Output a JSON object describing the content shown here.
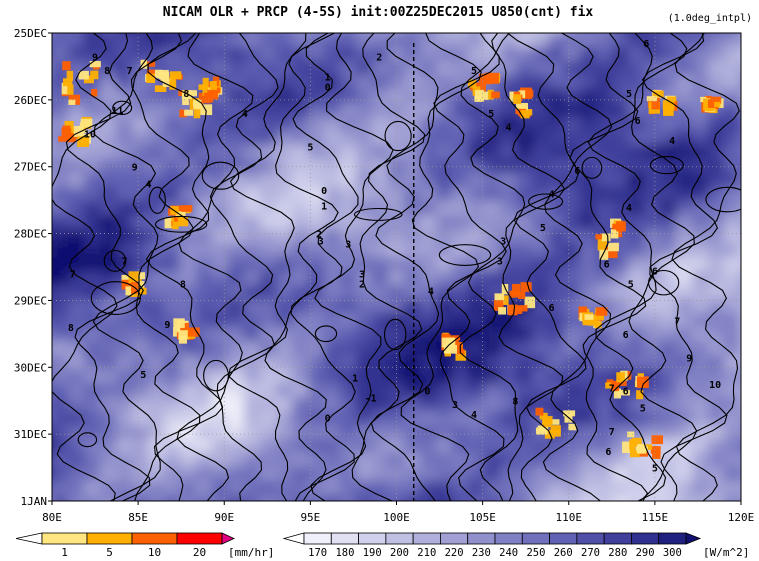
{
  "figure": {
    "title": "NICAM  OLR + PRCP (4-5S) init:00Z25DEC2015 U850(cnt) fix",
    "note": "(1.0deg_intpl)"
  },
  "chart_data": {
    "type": "heatmap",
    "x": {
      "min": 80,
      "max": 120,
      "unit": "°E",
      "ticks": [
        80,
        85,
        90,
        95,
        100,
        105,
        110,
        115,
        120
      ],
      "tick_labels": [
        "80E",
        "85E",
        "90E",
        "95E",
        "100E",
        "105E",
        "110E",
        "115E",
        "120E"
      ]
    },
    "y": {
      "start": "25DEC",
      "end": "1JAN",
      "direction": "top-to-bottom",
      "tick_labels": [
        "25DEC",
        "26DEC",
        "27DEC",
        "28DEC",
        "29DEC",
        "30DEC",
        "31DEC",
        "1JAN"
      ]
    },
    "reference_line_lon": 101,
    "grid": true,
    "precipitation_colorbar": {
      "levels": [
        "1",
        "5",
        "10",
        "20"
      ],
      "unit": "[mm/hr]",
      "colors": [
        "#ffffff",
        "#ffe680",
        "#ffb000",
        "#ff6000",
        "#ff0000",
        "#e0007f"
      ]
    },
    "olr_colorbar": {
      "levels": [
        "170",
        "180",
        "190",
        "200",
        "210",
        "220",
        "230",
        "240",
        "250",
        "260",
        "270",
        "280",
        "290",
        "300"
      ],
      "unit": "[W/m^2]",
      "colors": [
        "#ffffff",
        "#f0f0fa",
        "#e0e0f2",
        "#d0d0ec",
        "#c0c0e4",
        "#b0b0dc",
        "#a0a0d4",
        "#9090cc",
        "#8080c4",
        "#7070bc",
        "#6060b4",
        "#5050a8",
        "#40409c",
        "#303090",
        "#202080",
        "#101070"
      ]
    },
    "u850_contour_labels": [
      {
        "text": "2",
        "lon": 99.0,
        "day": 0.35
      },
      {
        "text": "6",
        "lon": 114.5,
        "day": 0.15
      },
      {
        "text": "1",
        "lon": 96.0,
        "day": 0.65
      },
      {
        "text": "0",
        "lon": 96.0,
        "day": 0.8
      },
      {
        "text": "9",
        "lon": 82.5,
        "day": 0.35
      },
      {
        "text": "8",
        "lon": 83.2,
        "day": 0.55
      },
      {
        "text": "7",
        "lon": 84.5,
        "day": 0.55
      },
      {
        "text": "11",
        "lon": 83.8,
        "day": 1.15
      },
      {
        "text": "10",
        "lon": 82.2,
        "day": 1.5
      },
      {
        "text": "8",
        "lon": 87.8,
        "day": 0.9
      },
      {
        "text": "4",
        "lon": 91.2,
        "day": 1.2
      },
      {
        "text": "5",
        "lon": 104.5,
        "day": 0.55
      },
      {
        "text": "5",
        "lon": 105.5,
        "day": 1.2
      },
      {
        "text": "4",
        "lon": 106.5,
        "day": 1.4
      },
      {
        "text": "5",
        "lon": 113.5,
        "day": 0.9
      },
      {
        "text": "6",
        "lon": 114.0,
        "day": 1.3
      },
      {
        "text": "4",
        "lon": 116.0,
        "day": 1.6
      },
      {
        "text": "9",
        "lon": 84.8,
        "day": 2.0
      },
      {
        "text": "5",
        "lon": 95.0,
        "day": 1.7
      },
      {
        "text": "6",
        "lon": 110.5,
        "day": 2.05
      },
      {
        "text": "4",
        "lon": 109.0,
        "day": 2.4
      },
      {
        "text": "4",
        "lon": 113.5,
        "day": 2.6
      },
      {
        "text": "0",
        "lon": 95.8,
        "day": 2.35
      },
      {
        "text": "1",
        "lon": 95.8,
        "day": 2.58
      },
      {
        "text": "4",
        "lon": 85.6,
        "day": 2.25
      },
      {
        "text": "2",
        "lon": 95.5,
        "day": 3.0
      },
      {
        "text": "3",
        "lon": 95.6,
        "day": 3.1
      },
      {
        "text": "3",
        "lon": 97.2,
        "day": 3.15
      },
      {
        "text": "3",
        "lon": 106.2,
        "day": 3.1
      },
      {
        "text": "5",
        "lon": 108.5,
        "day": 2.9
      },
      {
        "text": "3",
        "lon": 106.0,
        "day": 3.4
      },
      {
        "text": "6",
        "lon": 112.2,
        "day": 3.45
      },
      {
        "text": "5",
        "lon": 113.6,
        "day": 3.75
      },
      {
        "text": "6",
        "lon": 115.0,
        "day": 3.55
      },
      {
        "text": "7",
        "lon": 84.2,
        "day": 3.4
      },
      {
        "text": "7",
        "lon": 81.2,
        "day": 3.6
      },
      {
        "text": "8",
        "lon": 87.6,
        "day": 3.75
      },
      {
        "text": "3",
        "lon": 98.0,
        "day": 3.6
      },
      {
        "text": "2",
        "lon": 98.0,
        "day": 3.75
      },
      {
        "text": "4",
        "lon": 102.0,
        "day": 3.85
      },
      {
        "text": "6",
        "lon": 109.0,
        "day": 4.1
      },
      {
        "text": "7",
        "lon": 116.3,
        "day": 4.3
      },
      {
        "text": "8",
        "lon": 81.1,
        "day": 4.4
      },
      {
        "text": "9",
        "lon": 86.7,
        "day": 4.35
      },
      {
        "text": "6",
        "lon": 113.3,
        "day": 4.5
      },
      {
        "text": "9",
        "lon": 117.0,
        "day": 4.85
      },
      {
        "text": "5",
        "lon": 85.3,
        "day": 5.1
      },
      {
        "text": "1",
        "lon": 97.6,
        "day": 5.15
      },
      {
        "text": "-1",
        "lon": 98.5,
        "day": 5.45
      },
      {
        "text": "0",
        "lon": 101.8,
        "day": 5.35
      },
      {
        "text": "7",
        "lon": 112.5,
        "day": 5.3
      },
      {
        "text": "6",
        "lon": 113.3,
        "day": 5.35
      },
      {
        "text": "10",
        "lon": 118.5,
        "day": 5.25
      },
      {
        "text": "3",
        "lon": 103.4,
        "day": 5.55
      },
      {
        "text": "4",
        "lon": 104.5,
        "day": 5.7
      },
      {
        "text": "8",
        "lon": 106.9,
        "day": 5.5
      },
      {
        "text": "5",
        "lon": 114.3,
        "day": 5.6
      },
      {
        "text": "0",
        "lon": 96.0,
        "day": 5.75
      },
      {
        "text": "7",
        "lon": 112.5,
        "day": 5.95
      },
      {
        "text": "6",
        "lon": 112.3,
        "day": 6.25
      },
      {
        "text": "5",
        "lon": 115.0,
        "day": 6.5
      }
    ]
  }
}
